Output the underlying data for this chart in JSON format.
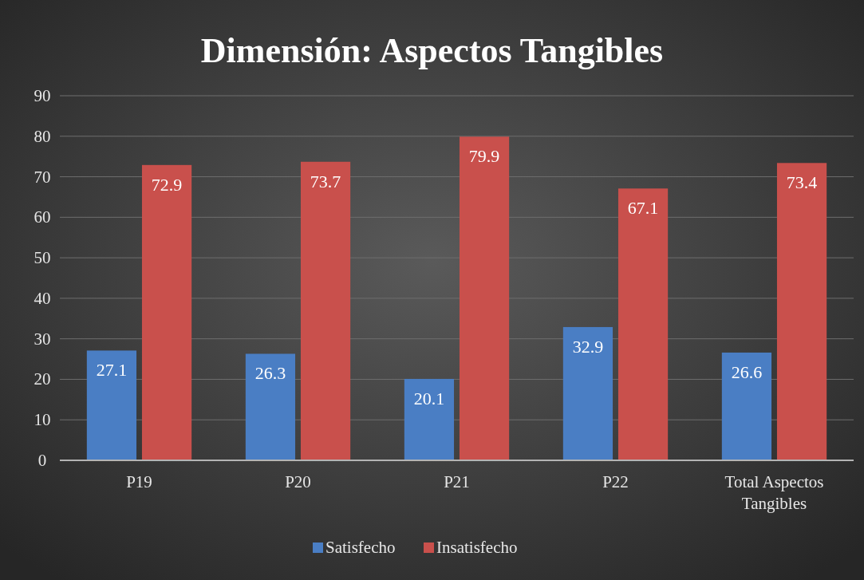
{
  "chart_data": {
    "type": "bar",
    "title": "Dimensión: Aspectos Tangibles",
    "categories": [
      "P19",
      "P20",
      "P21",
      "P22",
      "Total Aspectos Tangibles"
    ],
    "series": [
      {
        "name": "Satisfecho",
        "color": "#4a7ec4",
        "values": [
          27.1,
          26.3,
          20.1,
          32.9,
          26.6
        ]
      },
      {
        "name": "Insatisfecho",
        "color": "#c9504c",
        "values": [
          72.9,
          73.7,
          79.9,
          67.1,
          73.4
        ]
      }
    ],
    "ylim": [
      0,
      90
    ],
    "yticks": [
      0,
      10,
      20,
      30,
      40,
      50,
      60,
      70,
      80,
      90
    ],
    "grid": "y",
    "legend": "bottom",
    "data_labels": true
  }
}
